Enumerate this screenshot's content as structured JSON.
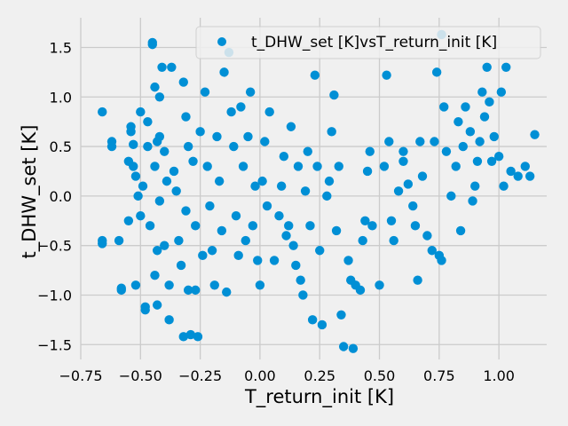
{
  "chart_data": {
    "type": "scatter",
    "xlabel": "T_return_init [K]",
    "ylabel": "t_DHW_set [K]",
    "xlim": [
      -0.75,
      1.2
    ],
    "ylim": [
      -1.65,
      1.8
    ],
    "xticks": [
      -0.75,
      -0.5,
      -0.25,
      0.0,
      0.25,
      0.5,
      0.75,
      1.0
    ],
    "xtick_labels": [
      "−0.75",
      "−0.50",
      "−0.25",
      "0.00",
      "0.25",
      "0.50",
      "0.75",
      "1.00"
    ],
    "yticks": [
      -1.5,
      -1.0,
      -0.5,
      0.0,
      0.5,
      1.0,
      1.5
    ],
    "ytick_labels": [
      "−1.5",
      "−1.0",
      "−0.5",
      "0.0",
      "0.5",
      "1.0",
      "1.5"
    ],
    "grid": true,
    "legend_position": "top-right",
    "series": [
      {
        "name": "t_DHW_set [K]vsT_return_init [K]",
        "color": "#008fd5",
        "points": [
          [
            -0.66,
            0.85
          ],
          [
            -0.62,
            0.55
          ],
          [
            -0.62,
            0.5
          ],
          [
            -0.66,
            -0.45
          ],
          [
            -0.66,
            -0.48
          ],
          [
            -0.59,
            -0.45
          ],
          [
            -0.58,
            -0.95
          ],
          [
            -0.58,
            -0.93
          ],
          [
            -0.55,
            0.35
          ],
          [
            -0.55,
            -0.25
          ],
          [
            -0.54,
            0.65
          ],
          [
            -0.54,
            0.7
          ],
          [
            -0.53,
            0.52
          ],
          [
            -0.52,
            0.2
          ],
          [
            -0.51,
            0.0
          ],
          [
            -0.52,
            -0.9
          ],
          [
            -0.53,
            0.3
          ],
          [
            -0.5,
            0.85
          ],
          [
            -0.49,
            0.1
          ],
          [
            -0.5,
            -0.2
          ],
          [
            -0.48,
            -1.15
          ],
          [
            -0.47,
            0.75
          ],
          [
            -0.47,
            0.5
          ],
          [
            -0.46,
            -0.3
          ],
          [
            -0.45,
            1.55
          ],
          [
            -0.45,
            1.53
          ],
          [
            -0.44,
            1.1
          ],
          [
            -0.43,
            0.55
          ],
          [
            -0.42,
            0.6
          ],
          [
            -0.44,
            0.3
          ],
          [
            -0.42,
            -0.05
          ],
          [
            -0.43,
            -0.55
          ],
          [
            -0.44,
            -0.8
          ],
          [
            -0.43,
            -1.1
          ],
          [
            -0.41,
            1.3
          ],
          [
            -0.4,
            0.45
          ],
          [
            -0.39,
            0.15
          ],
          [
            -0.4,
            -0.5
          ],
          [
            -0.38,
            -0.9
          ],
          [
            -0.38,
            -1.25
          ],
          [
            -0.37,
            1.3
          ],
          [
            -0.36,
            0.25
          ],
          [
            -0.35,
            0.05
          ],
          [
            -0.34,
            -0.45
          ],
          [
            -0.33,
            -0.7
          ],
          [
            -0.32,
            1.15
          ],
          [
            -0.31,
            0.8
          ],
          [
            -0.3,
            0.5
          ],
          [
            -0.31,
            -0.15
          ],
          [
            -0.3,
            -0.95
          ],
          [
            -0.29,
            -1.4
          ],
          [
            -0.28,
            0.35
          ],
          [
            -0.27,
            -0.3
          ],
          [
            -0.27,
            -0.95
          ],
          [
            -0.26,
            -1.42
          ],
          [
            -0.25,
            0.65
          ],
          [
            -0.24,
            -0.6
          ],
          [
            -0.23,
            1.05
          ],
          [
            -0.22,
            0.3
          ],
          [
            -0.21,
            -0.1
          ],
          [
            -0.2,
            -0.55
          ],
          [
            -0.19,
            -0.9
          ],
          [
            -0.18,
            0.6
          ],
          [
            -0.17,
            0.15
          ],
          [
            -0.16,
            -0.35
          ],
          [
            -0.15,
            1.25
          ],
          [
            -0.14,
            -0.97
          ],
          [
            -0.13,
            1.45
          ],
          [
            -0.12,
            0.85
          ],
          [
            -0.11,
            0.5
          ],
          [
            -0.1,
            -0.2
          ],
          [
            -0.09,
            -0.6
          ],
          [
            -0.08,
            0.9
          ],
          [
            -0.07,
            0.3
          ],
          [
            -0.06,
            -0.45
          ],
          [
            -0.05,
            0.6
          ],
          [
            -0.04,
            1.05
          ],
          [
            -0.03,
            -0.3
          ],
          [
            -0.02,
            0.1
          ],
          [
            -0.01,
            -0.65
          ],
          [
            0.0,
            -0.9
          ],
          [
            0.01,
            0.15
          ],
          [
            0.02,
            0.55
          ],
          [
            0.03,
            -0.1
          ],
          [
            0.04,
            0.85
          ],
          [
            0.06,
            -0.65
          ],
          [
            0.08,
            -0.2
          ],
          [
            0.09,
            0.1
          ],
          [
            0.1,
            0.4
          ],
          [
            0.11,
            -0.4
          ],
          [
            0.12,
            -0.3
          ],
          [
            0.13,
            0.7
          ],
          [
            0.14,
            -0.5
          ],
          [
            0.15,
            -0.7
          ],
          [
            0.16,
            0.3
          ],
          [
            0.17,
            -0.85
          ],
          [
            0.18,
            -1.0
          ],
          [
            0.19,
            0.05
          ],
          [
            0.2,
            0.45
          ],
          [
            0.21,
            -0.3
          ],
          [
            0.22,
            -1.25
          ],
          [
            0.23,
            1.22
          ],
          [
            0.24,
            0.3
          ],
          [
            0.25,
            -0.55
          ],
          [
            0.26,
            -1.3
          ],
          [
            0.28,
            0.0
          ],
          [
            0.29,
            0.15
          ],
          [
            0.3,
            0.65
          ],
          [
            0.31,
            1.02
          ],
          [
            0.32,
            -0.35
          ],
          [
            0.33,
            0.3
          ],
          [
            0.34,
            -1.2
          ],
          [
            0.35,
            -1.52
          ],
          [
            0.37,
            -0.65
          ],
          [
            0.38,
            -0.85
          ],
          [
            0.39,
            -1.54
          ],
          [
            0.4,
            -0.9
          ],
          [
            0.42,
            -0.95
          ],
          [
            0.43,
            -0.45
          ],
          [
            0.44,
            -0.25
          ],
          [
            0.45,
            0.25
          ],
          [
            0.46,
            0.45
          ],
          [
            0.47,
            -0.3
          ],
          [
            0.5,
            -0.9
          ],
          [
            0.52,
            0.3
          ],
          [
            0.53,
            1.22
          ],
          [
            0.54,
            0.55
          ],
          [
            0.55,
            -0.25
          ],
          [
            0.56,
            -0.45
          ],
          [
            0.58,
            0.05
          ],
          [
            0.6,
            0.35
          ],
          [
            0.62,
            0.12
          ],
          [
            0.64,
            -0.1
          ],
          [
            0.65,
            -0.3
          ],
          [
            0.66,
            -0.85
          ],
          [
            0.67,
            0.55
          ],
          [
            0.68,
            0.2
          ],
          [
            0.7,
            -0.4
          ],
          [
            0.72,
            -0.55
          ],
          [
            0.73,
            0.55
          ],
          [
            0.74,
            1.25
          ],
          [
            0.75,
            -0.6
          ],
          [
            0.76,
            -0.65
          ],
          [
            0.77,
            0.9
          ],
          [
            0.78,
            0.45
          ],
          [
            0.8,
            0.0
          ],
          [
            0.82,
            0.3
          ],
          [
            0.83,
            0.75
          ],
          [
            0.84,
            -0.35
          ],
          [
            0.85,
            0.5
          ],
          [
            0.86,
            0.9
          ],
          [
            0.88,
            0.65
          ],
          [
            0.9,
            0.1
          ],
          [
            0.91,
            0.35
          ],
          [
            0.92,
            0.55
          ],
          [
            0.93,
            1.05
          ],
          [
            0.94,
            0.8
          ],
          [
            0.95,
            1.3
          ],
          [
            0.96,
            0.95
          ],
          [
            0.97,
            0.35
          ],
          [
            0.98,
            0.6
          ],
          [
            1.0,
            0.4
          ],
          [
            1.01,
            1.05
          ],
          [
            1.02,
            0.1
          ],
          [
            1.03,
            1.3
          ],
          [
            1.05,
            0.25
          ],
          [
            1.08,
            0.2
          ],
          [
            1.11,
            0.3
          ],
          [
            1.13,
            0.2
          ],
          [
            1.15,
            0.62
          ],
          [
            0.76,
            1.63
          ],
          [
            -0.32,
            -1.42
          ],
          [
            -0.48,
            -1.12
          ],
          [
            -0.42,
            1.0
          ],
          [
            0.89,
            -0.05
          ],
          [
            0.6,
            0.45
          ]
        ]
      }
    ]
  }
}
